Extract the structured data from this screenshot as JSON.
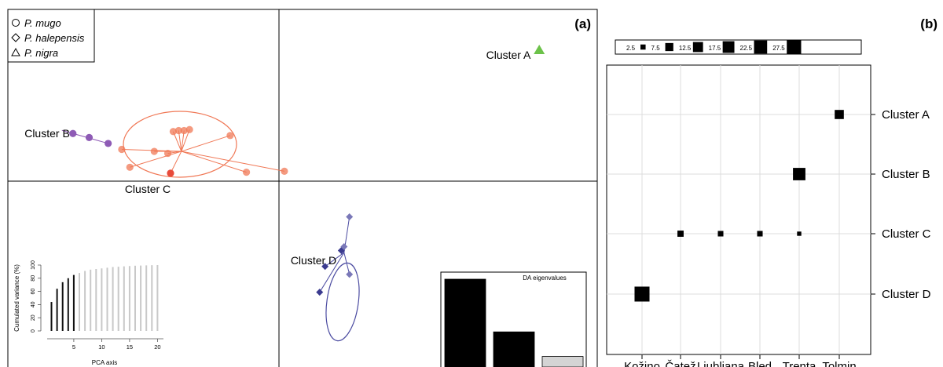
{
  "panel_a": {
    "label": "(a)",
    "legend": [
      {
        "symbol": "circle",
        "label": "P. mugo"
      },
      {
        "symbol": "diamond",
        "label": "P. halepensis"
      },
      {
        "symbol": "triangle",
        "label": "P. nigra"
      }
    ],
    "cluster_labels": {
      "A": "Cluster A",
      "B": "Cluster B",
      "C": "Cluster C",
      "D": "Cluster D"
    },
    "colors": {
      "A": "#6cc24a",
      "B": "#8e5bb5",
      "C": "#f07856",
      "D": "#4a4aa0"
    },
    "inset_pca": {
      "ylabel": "Cumulated variance (%)",
      "xlabel": "PCA axis",
      "yticks": [
        "0",
        "20",
        "40",
        "60",
        "80",
        "100"
      ],
      "xticks": [
        "5",
        "10",
        "15",
        "20"
      ]
    },
    "inset_da": {
      "title": "DA eigenvalues"
    }
  },
  "chart_data": [
    {
      "type": "scatter",
      "title": "",
      "xlabel": "",
      "ylabel": "",
      "series": [
        {
          "name": "Cluster A",
          "species": "P. nigra",
          "points": [
            [
              9.6,
              6.6
            ]
          ]
        },
        {
          "name": "Cluster B",
          "species": "P. mugo",
          "points": [
            [
              -7.6,
              2.4
            ],
            [
              -7.0,
              2.2
            ],
            [
              -6.3,
              1.9
            ]
          ]
        },
        {
          "name": "Cluster C",
          "species": "P. mugo",
          "centroid": [
            -3.6,
            1.5
          ],
          "points": [
            [
              -3.9,
              2.5
            ],
            [
              -3.7,
              2.55
            ],
            [
              -3.5,
              2.55
            ],
            [
              -3.3,
              2.6
            ],
            [
              -1.8,
              2.3
            ],
            [
              -5.8,
              1.6
            ],
            [
              -4.6,
              1.5
            ],
            [
              -4.1,
              1.4
            ],
            [
              -5.5,
              0.7
            ],
            [
              -4.0,
              0.4
            ],
            [
              -1.2,
              0.45
            ],
            [
              0.2,
              0.5
            ]
          ]
        },
        {
          "name": "Cluster D",
          "species": "P. halepensis",
          "centroid": [
            2.4,
            -3.6
          ],
          "points": [
            [
              2.6,
              -1.8
            ],
            [
              2.3,
              -3.5
            ],
            [
              2.4,
              -3.3
            ],
            [
              1.7,
              -4.3
            ],
            [
              2.6,
              -4.7
            ],
            [
              1.5,
              -5.6
            ]
          ]
        }
      ]
    },
    {
      "type": "bar",
      "title": "",
      "xlabel": "PCA axis",
      "ylabel": "Cumulated variance (%)",
      "ylim": [
        0,
        100
      ],
      "x": [
        1,
        2,
        3,
        4,
        5,
        6,
        7,
        8,
        9,
        10,
        11,
        12,
        13,
        14,
        15,
        16,
        17,
        18,
        19,
        20
      ],
      "values": [
        44,
        64,
        74,
        80,
        85,
        88,
        91,
        93,
        94,
        95,
        96,
        97,
        97.5,
        98,
        98.5,
        99,
        99.3,
        99.6,
        99.8,
        100
      ],
      "retained": 5
    },
    {
      "type": "bar",
      "title": "DA eigenvalues",
      "values": [
        1.0,
        0.4,
        0.12
      ]
    },
    {
      "type": "scatter",
      "title": "",
      "label": "(b)",
      "xlabel": "",
      "ylabel": "",
      "x_categories": [
        "Kožino",
        "Čatež",
        "Ljubljana",
        "Bled",
        "Trenta",
        "Tolmin"
      ],
      "y_categories": [
        "Cluster A",
        "Cluster B",
        "Cluster C",
        "Cluster D"
      ],
      "size_legend": [
        2.5,
        7.5,
        12.5,
        17.5,
        22.5,
        27.5
      ],
      "points": [
        {
          "x": "Tolmin",
          "y": "Cluster A",
          "value": 10
        },
        {
          "x": "Trenta",
          "y": "Cluster B",
          "value": 20
        },
        {
          "x": "Čatež",
          "y": "Cluster C",
          "value": 4
        },
        {
          "x": "Ljubljana",
          "y": "Cluster C",
          "value": 3
        },
        {
          "x": "Bled",
          "y": "Cluster C",
          "value": 3
        },
        {
          "x": "Trenta",
          "y": "Cluster C",
          "value": 1.5
        },
        {
          "x": "Kožino",
          "y": "Cluster D",
          "value": 30
        }
      ]
    }
  ]
}
